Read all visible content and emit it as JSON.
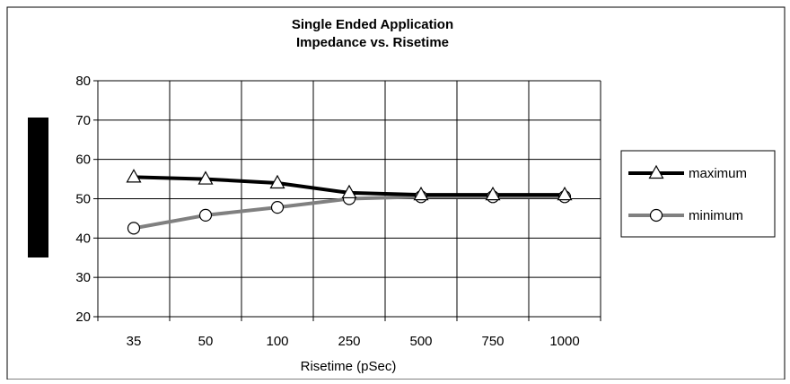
{
  "chart_data": {
    "type": "line",
    "title": "Single Ended Application",
    "subtitle": "Impedance vs. Risetime",
    "xlabel": "Risetime (pSec)",
    "ylabel": "",
    "categories": [
      "35",
      "50",
      "100",
      "250",
      "500",
      "750",
      "1000"
    ],
    "ylim": [
      20,
      80
    ],
    "yticks": [
      20,
      30,
      40,
      50,
      60,
      70,
      80
    ],
    "grid": true,
    "legend_position": "right",
    "series": [
      {
        "name": "maximum",
        "marker": "triangle",
        "color": "#000000",
        "values": [
          55.5,
          55,
          54,
          51.5,
          51,
          51,
          51
        ]
      },
      {
        "name": "minimum",
        "marker": "circle",
        "color": "#808080",
        "values": [
          42.5,
          45.8,
          47.8,
          50,
          50.5,
          50.5,
          50.5
        ]
      }
    ]
  }
}
